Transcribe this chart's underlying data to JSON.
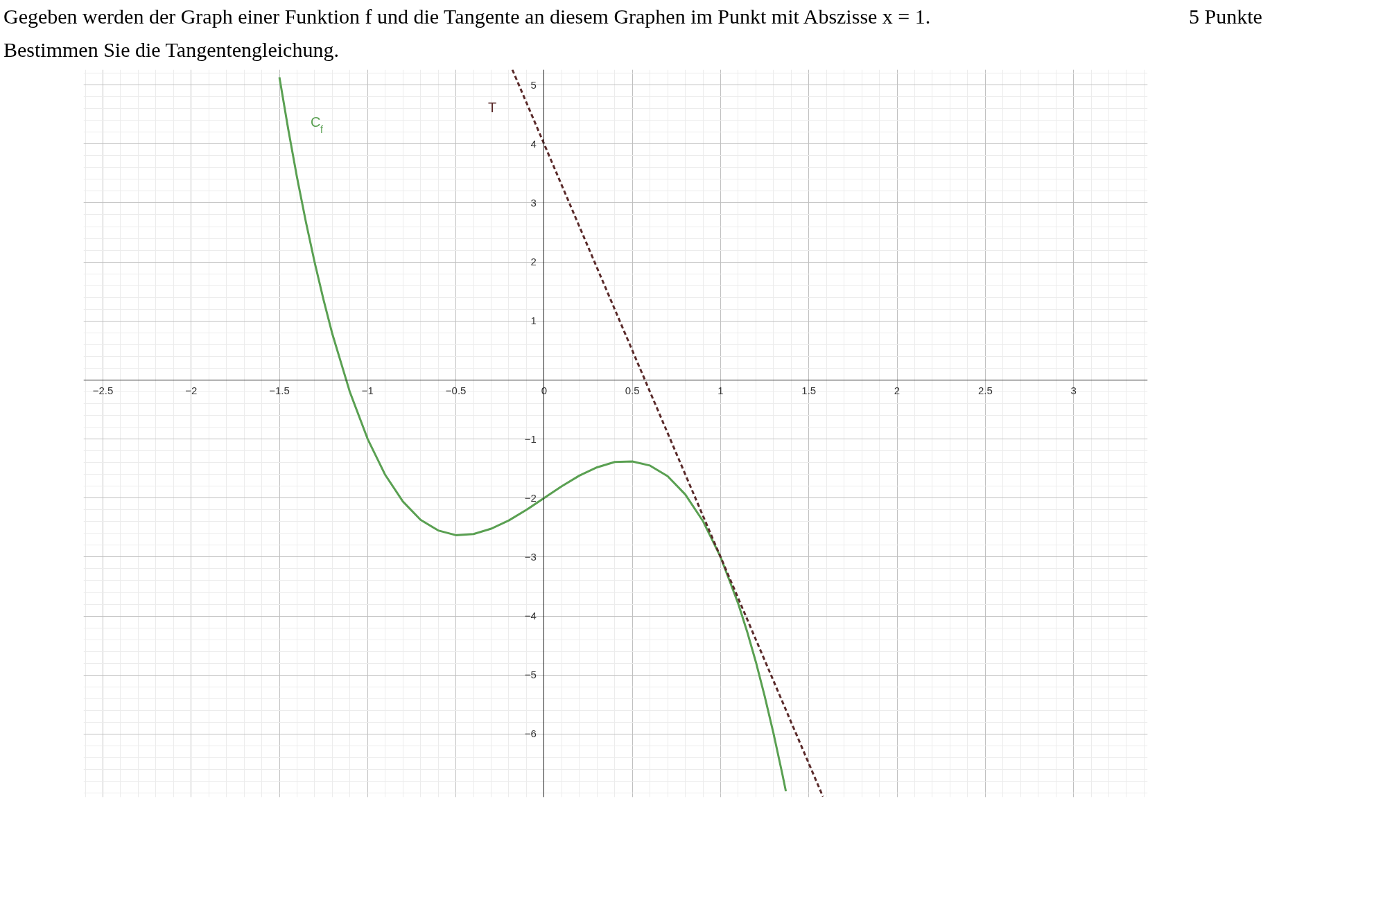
{
  "chart_data": {
    "type": "line",
    "title": "Gegeben werden der Graph einer Funktion f und die Tangente an diesem Graphen im Punkt mit Abszisse x = 1.",
    "subtitle": "Bestimmen Sie die Tangentengleichung.",
    "annotations": [
      "5 Punkte"
    ],
    "x": [
      -1.5,
      -1.45,
      -1.4,
      -1.35,
      -1.3,
      -1.25,
      -1.2,
      -1.1,
      -1.0,
      -0.9,
      -0.8,
      -0.7,
      -0.6,
      -0.5,
      -0.4,
      -0.3,
      -0.2,
      -0.1,
      0,
      0.1,
      0.2,
      0.3,
      0.4,
      0.5,
      0.6,
      0.7,
      0.8,
      0.9,
      1.0,
      1.1,
      1.15,
      1.2,
      1.25,
      1.3,
      1.35,
      1.37
    ],
    "series": [
      {
        "name": "C$_{f}$",
        "color": "#5aa052",
        "line_style": "solid",
        "values": [
          5.13,
          4.25,
          3.43,
          2.68,
          1.99,
          1.36,
          0.78,
          -0.21,
          -1.0,
          -1.61,
          -2.06,
          -2.37,
          -2.55,
          -2.63,
          -2.61,
          -2.52,
          -2.38,
          -2.2,
          -2.0,
          -1.8,
          -1.62,
          -1.48,
          -1.39,
          -1.38,
          -1.45,
          -1.63,
          -1.94,
          -2.39,
          -3.0,
          -3.79,
          -4.26,
          -4.78,
          -5.36,
          -5.99,
          -6.68,
          -6.97
        ]
      },
      {
        "type": "line",
        "name": "T",
        "color": "#5a2a2a",
        "line_style": "dashed",
        "x": [
          -0.18,
          1.58
        ],
        "values": [
          5.26,
          -7.06
        ]
      }
    ],
    "xlim": [
      -2.61,
      3.42
    ],
    "ylim": [
      -7.07,
      5.26
    ],
    "xticks": [
      {
        "value": -2.5,
        "label": "−2.5"
      },
      {
        "value": -2,
        "label": "−2"
      },
      {
        "value": -1.5,
        "label": "−1.5"
      },
      {
        "value": -1,
        "label": "−1"
      },
      {
        "value": -0.5,
        "label": "−0.5"
      },
      0,
      0.5,
      1,
      1.5,
      2,
      2.5,
      3
    ],
    "yticks": [
      {
        "value": -6,
        "label": "−6"
      },
      {
        "value": -5,
        "label": "−5"
      },
      {
        "value": -4,
        "label": "−4"
      },
      {
        "value": -3,
        "label": "−3"
      },
      {
        "value": -2,
        "label": "−2"
      },
      {
        "value": -1,
        "label": "−1"
      },
      1,
      2,
      3,
      4,
      5
    ],
    "grid": true
  }
}
